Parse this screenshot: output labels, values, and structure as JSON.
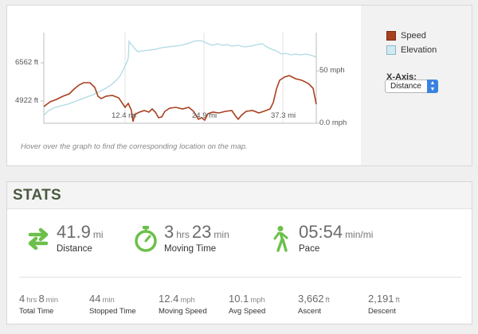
{
  "graph": {
    "y_left_ticks": [
      "6562 ft",
      "4922 ft"
    ],
    "y_right_ticks": [
      "50 mph",
      "0.0 mph"
    ],
    "x_ticks": [
      "12.4 mi",
      "24.9 mi",
      "37.3 mi"
    ],
    "hover_note": "Hover over the graph to find the corresponding location on the map.",
    "legend": {
      "speed_label": "Speed",
      "elevation_label": "Elevation",
      "speed_color": "#a8401f",
      "elevation_color": "#aedbe3"
    },
    "x_axis_label": "X-Axis:",
    "x_axis_value": "Distance"
  },
  "stats": {
    "title": "STATS",
    "distance": {
      "value": "41.9",
      "unit": "mi",
      "label": "Distance",
      "icon": "route-arrows-icon"
    },
    "moving_time": {
      "hrs": "3",
      "hrs_unit": "hrs",
      "min": "23",
      "min_unit": "min",
      "label": "Moving Time",
      "icon": "stopwatch-icon"
    },
    "pace": {
      "value": "05:54",
      "unit": "min/mi",
      "label": "Pace",
      "icon": "walker-icon"
    },
    "total_time": {
      "hrs": "4",
      "hrs_unit": "hrs",
      "min": "8",
      "min_unit": "min",
      "label": "Total Time"
    },
    "stopped_time": {
      "value": "44",
      "unit": "min",
      "label": "Stopped Time"
    },
    "moving_speed": {
      "value": "12.4",
      "unit": "mph",
      "label": "Moving Speed"
    },
    "avg_speed": {
      "value": "10.1",
      "unit": "mph",
      "label": "Avg Speed"
    },
    "ascent": {
      "value": "3,662",
      "unit": "ft",
      "label": "Ascent"
    },
    "descent": {
      "value": "2,191",
      "unit": "ft",
      "label": "Descent"
    },
    "accent_color": "#6cc04a"
  }
}
